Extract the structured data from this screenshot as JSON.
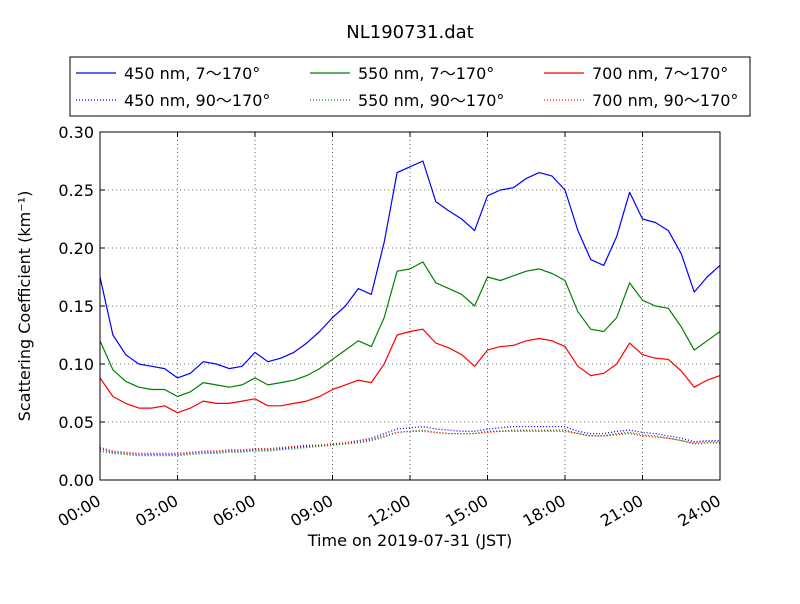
{
  "chart_data": {
    "type": "line",
    "title": "NL190731.dat",
    "xlabel": "Time on 2019-07-31 (JST)",
    "ylabel": "Scattering Coefficient (km⁻¹)",
    "x_ticks": [
      "00:00",
      "03:00",
      "06:00",
      "09:00",
      "12:00",
      "15:00",
      "18:00",
      "21:00",
      "24:00"
    ],
    "y_ticks": [
      "0.00",
      "0.05",
      "0.10",
      "0.15",
      "0.20",
      "0.25",
      "0.30"
    ],
    "xlim_hours": [
      0,
      24
    ],
    "ylim": [
      0.0,
      0.3
    ],
    "grid": true,
    "legend_placement": "above plot, 3 columns",
    "x_hours": [
      0,
      0.5,
      1,
      1.5,
      2,
      2.5,
      3,
      3.5,
      4,
      4.5,
      5,
      5.5,
      6,
      6.5,
      7,
      7.5,
      8,
      8.5,
      9,
      9.5,
      10,
      10.5,
      11,
      11.5,
      12,
      12.5,
      13,
      13.5,
      14,
      14.5,
      15,
      15.5,
      16,
      16.5,
      17,
      17.5,
      18,
      18.5,
      19,
      19.5,
      20,
      20.5,
      21,
      21.5,
      22,
      22.5,
      23,
      23.5,
      24
    ],
    "series": [
      {
        "name": "450 nm, 7～170°",
        "color": "#0000ff",
        "style": "solid",
        "values": [
          0.175,
          0.125,
          0.108,
          0.1,
          0.098,
          0.096,
          0.088,
          0.092,
          0.102,
          0.1,
          0.096,
          0.098,
          0.11,
          0.102,
          0.105,
          0.11,
          0.118,
          0.128,
          0.14,
          0.15,
          0.165,
          0.16,
          0.205,
          0.265,
          0.27,
          0.275,
          0.24,
          0.232,
          0.225,
          0.215,
          0.245,
          0.25,
          0.252,
          0.26,
          0.265,
          0.262,
          0.25,
          0.215,
          0.19,
          0.185,
          0.21,
          0.248,
          0.225,
          0.222,
          0.215,
          0.195,
          0.162,
          0.175,
          0.185
        ]
      },
      {
        "name": "550 nm, 7～170°",
        "color": "#008000",
        "style": "solid",
        "values": [
          0.12,
          0.095,
          0.085,
          0.08,
          0.078,
          0.078,
          0.072,
          0.076,
          0.084,
          0.082,
          0.08,
          0.082,
          0.088,
          0.082,
          0.084,
          0.086,
          0.09,
          0.096,
          0.104,
          0.112,
          0.12,
          0.115,
          0.14,
          0.18,
          0.182,
          0.188,
          0.17,
          0.165,
          0.16,
          0.15,
          0.175,
          0.172,
          0.176,
          0.18,
          0.182,
          0.178,
          0.172,
          0.145,
          0.13,
          0.128,
          0.14,
          0.17,
          0.155,
          0.15,
          0.148,
          0.132,
          0.112,
          0.12,
          0.128
        ]
      },
      {
        "name": "700 nm, 7～170°",
        "color": "#ff0000",
        "style": "solid",
        "values": [
          0.088,
          0.072,
          0.066,
          0.062,
          0.062,
          0.064,
          0.058,
          0.062,
          0.068,
          0.066,
          0.066,
          0.068,
          0.07,
          0.064,
          0.064,
          0.066,
          0.068,
          0.072,
          0.078,
          0.082,
          0.086,
          0.084,
          0.1,
          0.125,
          0.128,
          0.13,
          0.118,
          0.114,
          0.108,
          0.098,
          0.112,
          0.115,
          0.116,
          0.12,
          0.122,
          0.12,
          0.115,
          0.098,
          0.09,
          0.092,
          0.1,
          0.118,
          0.108,
          0.105,
          0.104,
          0.094,
          0.08,
          0.086,
          0.09
        ]
      },
      {
        "name": "450 nm, 90～170°",
        "color": "#0000ff",
        "style": "dotted",
        "values": [
          0.027,
          0.024,
          0.023,
          0.022,
          0.022,
          0.022,
          0.022,
          0.023,
          0.024,
          0.024,
          0.025,
          0.025,
          0.026,
          0.026,
          0.027,
          0.028,
          0.029,
          0.03,
          0.031,
          0.032,
          0.034,
          0.036,
          0.04,
          0.044,
          0.045,
          0.046,
          0.044,
          0.043,
          0.042,
          0.042,
          0.044,
          0.045,
          0.046,
          0.046,
          0.046,
          0.046,
          0.046,
          0.042,
          0.04,
          0.04,
          0.042,
          0.043,
          0.041,
          0.04,
          0.038,
          0.036,
          0.033,
          0.034,
          0.034
        ]
      },
      {
        "name": "550 nm, 90～170°",
        "color": "#008000",
        "style": "dotted",
        "values": [
          0.025,
          0.023,
          0.022,
          0.021,
          0.021,
          0.021,
          0.021,
          0.022,
          0.023,
          0.023,
          0.024,
          0.024,
          0.025,
          0.025,
          0.026,
          0.027,
          0.028,
          0.029,
          0.03,
          0.031,
          0.032,
          0.034,
          0.037,
          0.041,
          0.042,
          0.043,
          0.041,
          0.04,
          0.04,
          0.04,
          0.042,
          0.042,
          0.043,
          0.043,
          0.043,
          0.043,
          0.043,
          0.04,
          0.038,
          0.038,
          0.04,
          0.041,
          0.039,
          0.038,
          0.036,
          0.034,
          0.031,
          0.032,
          0.032
        ]
      },
      {
        "name": "700 nm, 90～170°",
        "color": "#ff0000",
        "style": "dotted",
        "values": [
          0.028,
          0.025,
          0.024,
          0.023,
          0.023,
          0.023,
          0.023,
          0.024,
          0.025,
          0.025,
          0.026,
          0.026,
          0.027,
          0.027,
          0.028,
          0.029,
          0.03,
          0.03,
          0.031,
          0.032,
          0.033,
          0.035,
          0.038,
          0.041,
          0.042,
          0.042,
          0.041,
          0.04,
          0.04,
          0.04,
          0.041,
          0.042,
          0.042,
          0.042,
          0.042,
          0.042,
          0.042,
          0.04,
          0.038,
          0.038,
          0.039,
          0.04,
          0.038,
          0.037,
          0.036,
          0.034,
          0.032,
          0.033,
          0.033
        ]
      }
    ],
    "legend_order": [
      0,
      1,
      2,
      3,
      4,
      5
    ]
  }
}
